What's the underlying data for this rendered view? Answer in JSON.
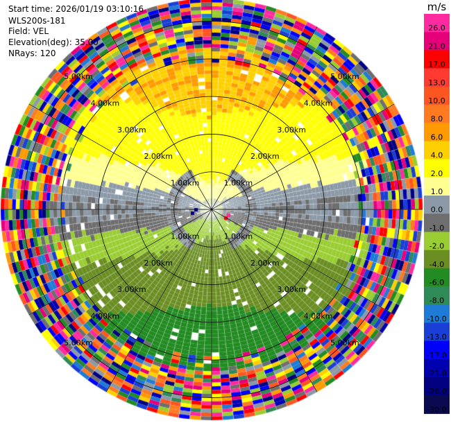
{
  "header": {
    "start_time": "Start time: 2026/01/19 03:10:16",
    "instrument": "WLS200s-181",
    "field": "Field: VEL",
    "elevation": "Elevation(deg): 35.00",
    "nrays": "NRays: 120"
  },
  "chart_data": {
    "type": "heatmap",
    "projection": "ppi-polar",
    "field": "VEL",
    "units": "m/s",
    "elevation_deg": 35.0,
    "n_rays": 120,
    "max_range_km": 5.6,
    "range_ring_labels": [
      "1.00km",
      "2.00km",
      "3.00km",
      "4.00km",
      "5.00km"
    ],
    "range_rings_km": [
      1,
      2,
      3,
      4,
      5
    ],
    "colorbar": {
      "unit_label": "m/s",
      "tick_labels": [
        "26.0",
        "21.0",
        "17.0",
        "13.0",
        "10.0",
        "8.0",
        "6.0",
        "4.0",
        "2.0",
        "1.0",
        "0.0",
        "-1.0",
        "-2.0",
        "-4.0",
        "-6.0",
        "-8.0",
        "-10.0",
        "-13.0",
        "-17.0",
        "-21.0",
        "-26.0",
        "-30.0"
      ],
      "colors": [
        "#ff2aa0",
        "#e6007a",
        "#ff0000",
        "#ff3a30",
        "#ff5520",
        "#ff7a20",
        "#ff9a00",
        "#ffd000",
        "#ffff00",
        "#ffff90",
        "#8c9aa8",
        "#6e6e6e",
        "#9acd32",
        "#6b8e23",
        "#228b22",
        "#2e8b57",
        "#1e7bd6",
        "#1a3fd6",
        "#0000ff",
        "#0000b0",
        "#000080",
        "#0a0a50"
      ]
    },
    "structure": {
      "inner_ring": "mixed low speed, small echoes near center",
      "receding_side": "north (positive, yellow/orange)",
      "approaching_side": "south (negative, green)",
      "outer_ring_beyond_km": 4.3,
      "outer_ring": "noise, multicolored"
    }
  }
}
